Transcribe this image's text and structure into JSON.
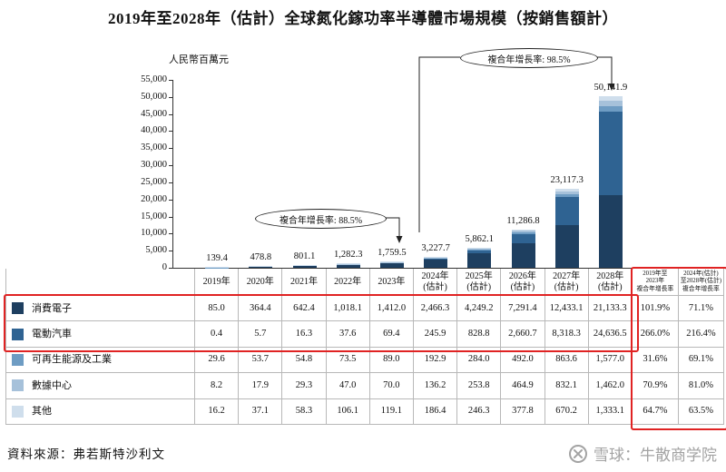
{
  "title": "2019年至2028年（估計）全球氮化鎵功率半導體市場規模（按銷售額計）",
  "source": "資料來源：弗若斯特沙利文",
  "watermark": {
    "logo_icon": "xueqiu-circle-logo-icon",
    "text": "雪球：牛散商学院"
  },
  "chart_data": {
    "type": "bar",
    "stacked": true,
    "title": "2019年至2028年（估計）全球氮化鎵功率半導體市場規模（按銷售額計）",
    "ylabel": "人民幣百萬元",
    "ylim": [
      0,
      55000
    ],
    "ytick_step": 5000,
    "ytick_labels": [
      "55,000",
      "50,000",
      "45,000",
      "40,000",
      "35,000",
      "30,000",
      "25,000",
      "20,000",
      "15,000",
      "10,000",
      "5,000",
      "0"
    ],
    "grid": false,
    "legend_position": "table-left-column",
    "categories": [
      [
        "2019年"
      ],
      [
        "2020年"
      ],
      [
        "2021年"
      ],
      [
        "2022年"
      ],
      [
        "2023年"
      ],
      [
        "2024年",
        "(估計)"
      ],
      [
        "2025年",
        "(估計)"
      ],
      [
        "2026年",
        "(估計)"
      ],
      [
        "2027年",
        "(估計)"
      ],
      [
        "2028年",
        "(估計)"
      ]
    ],
    "totals": [
      "139.4",
      "478.8",
      "801.1",
      "1,282.3",
      "1,759.5",
      "3,227.7",
      "5,862.1",
      "11,286.8",
      "23,117.3",
      "50,141.9"
    ],
    "series": [
      {
        "name": "消費電子",
        "color": "#1e3f60",
        "values": [
          85.0,
          364.4,
          642.4,
          1018.1,
          1412.0,
          2466.3,
          4249.2,
          7291.4,
          12433.1,
          21133.3
        ],
        "display": [
          "85.0",
          "364.4",
          "642.4",
          "1,018.1",
          "1,412.0",
          "2,466.3",
          "4,249.2",
          "7,291.4",
          "12,433.1",
          "21,133.3"
        ],
        "cagr_2019_2023": "101.9%",
        "cagr_2024e_2028e": "71.1%"
      },
      {
        "name": "電動汽車",
        "color": "#2f6392",
        "values": [
          0.4,
          5.7,
          16.3,
          37.6,
          69.4,
          245.9,
          828.8,
          2660.7,
          8318.3,
          24636.5
        ],
        "display": [
          "0.4",
          "5.7",
          "16.3",
          "37.6",
          "69.4",
          "245.9",
          "828.8",
          "2,660.7",
          "8,318.3",
          "24,636.5"
        ],
        "cagr_2019_2023": "266.0%",
        "cagr_2024e_2028e": "216.4%"
      },
      {
        "name": "可再生能源及工業",
        "color": "#6e9cc3",
        "values": [
          29.6,
          53.7,
          54.8,
          73.5,
          89.0,
          192.9,
          284.0,
          492.0,
          863.6,
          1577.0
        ],
        "display": [
          "29.6",
          "53.7",
          "54.8",
          "73.5",
          "89.0",
          "192.9",
          "284.0",
          "492.0",
          "863.6",
          "1,577.0"
        ],
        "cagr_2019_2023": "31.6%",
        "cagr_2024e_2028e": "69.1%"
      },
      {
        "name": "數據中心",
        "color": "#a6c1da",
        "values": [
          8.2,
          17.9,
          29.3,
          47.0,
          70.0,
          136.2,
          253.8,
          464.9,
          832.1,
          1462.0
        ],
        "display": [
          "8.2",
          "17.9",
          "29.3",
          "47.0",
          "70.0",
          "136.2",
          "253.8",
          "464.9",
          "832.1",
          "1,462.0"
        ],
        "cagr_2019_2023": "70.9%",
        "cagr_2024e_2028e": "81.0%"
      },
      {
        "name": "其他",
        "color": "#cfdeec",
        "values": [
          16.2,
          37.1,
          58.3,
          106.1,
          119.1,
          186.4,
          246.3,
          377.8,
          670.2,
          1333.1
        ],
        "display": [
          "16.2",
          "37.1",
          "58.3",
          "106.1",
          "119.1",
          "186.4",
          "246.3",
          "377.8",
          "670.2",
          "1,333.1"
        ],
        "cagr_2019_2023": "64.7%",
        "cagr_2024e_2028e": "63.5%"
      }
    ],
    "cagr_column_headers": [
      [
        "2019年至",
        "2023年",
        "複合年增長率"
      ],
      [
        "2024年(估計)",
        "至2028年(估計)",
        "複合年增長率"
      ]
    ],
    "annotations": [
      {
        "label": "複合年增長率: 88.5%",
        "applies_to": "2019年-2023年"
      },
      {
        "label": "複合年增長率: 98.5%",
        "applies_to": "2024年(估計)-2028年(估計)"
      }
    ]
  }
}
